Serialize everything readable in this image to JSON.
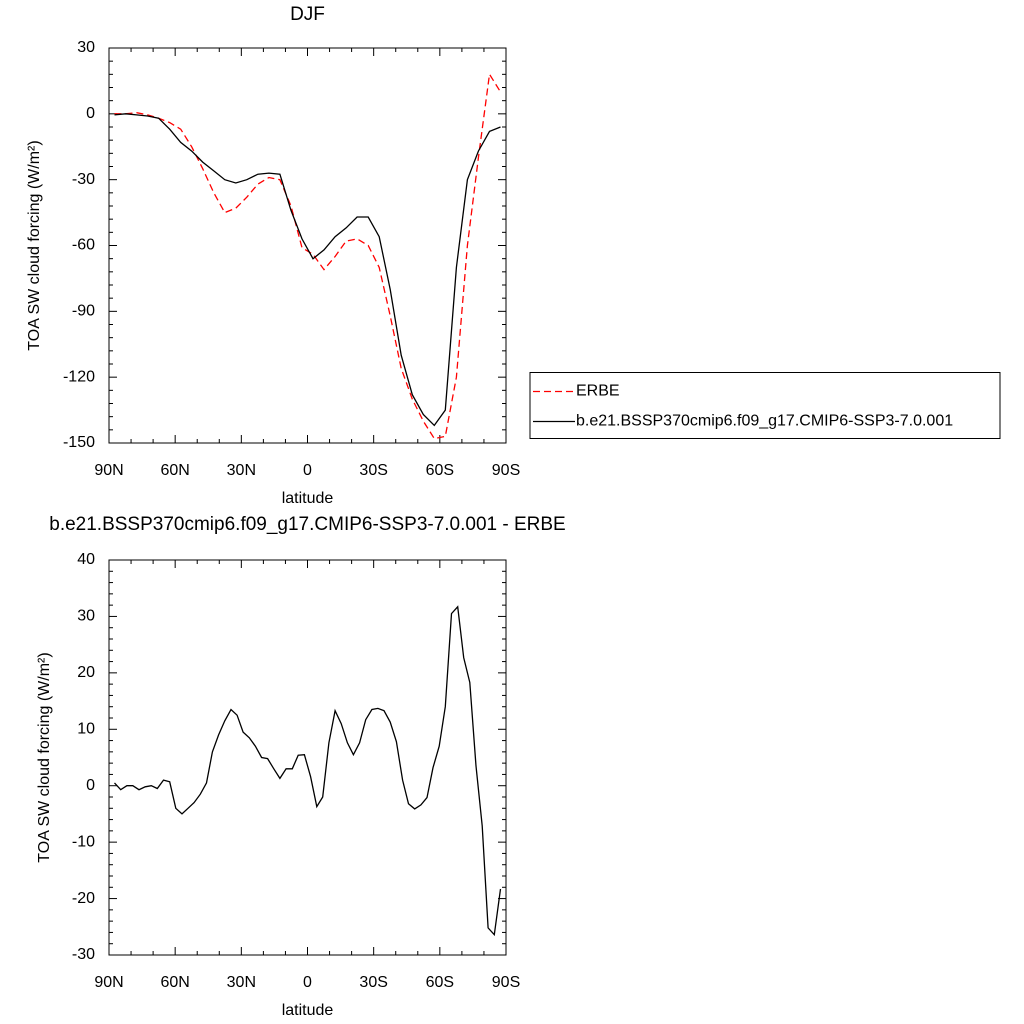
{
  "chart_data": [
    {
      "type": "line",
      "title": "DJF",
      "xlabel": "latitude",
      "ylabel": "TOA SW cloud forcing (W/m²)",
      "x": [
        87.5,
        82.5,
        77.5,
        72.5,
        67.5,
        62.5,
        57.5,
        52.5,
        47.5,
        42.5,
        37.5,
        32.5,
        27.5,
        22.5,
        17.5,
        12.5,
        7.5,
        2.5,
        -2.5,
        -7.5,
        -12.5,
        -17.5,
        -22.5,
        -27.5,
        -32.5,
        -37.5,
        -42.5,
        -47.5,
        -52.5,
        -57.5,
        -62.5,
        -67.5,
        -72.5,
        -77.5,
        -82.5,
        -87.5
      ],
      "series": [
        {
          "name": "ERBE",
          "color": "#ff0000",
          "line_style": "dashed",
          "values": [
            0,
            0,
            0.5,
            -0.5,
            -2,
            -4,
            -7,
            -15,
            -25,
            -36,
            -45,
            -43,
            -38,
            -32,
            -29,
            -30,
            -42,
            -61,
            -64,
            -71,
            -65,
            -58,
            -57,
            -60,
            -70,
            -92,
            -116,
            -130,
            -140,
            -148,
            -147,
            -120,
            -60,
            -20,
            18,
            10
          ]
        },
        {
          "name": "b.e21.BSSP370cmip6.f09_g17.CMIP6-SSP3-7.0.001",
          "color": "#000000",
          "line_style": "solid",
          "values": [
            -0.5,
            0,
            -0.5,
            -1,
            -2,
            -7,
            -13,
            -17,
            -22,
            -26,
            -30,
            -31.5,
            -30,
            -27.5,
            -27,
            -27.5,
            -44,
            -57,
            -66,
            -62,
            -56,
            -52,
            -47,
            -47,
            -56,
            -80,
            -110,
            -128,
            -137,
            -142,
            -135,
            -70,
            -30,
            -17,
            -8,
            -6
          ]
        }
      ],
      "xlim": [
        90,
        -90
      ],
      "ylim": [
        -150,
        30
      ],
      "xticks": [
        {
          "value": 90,
          "label": "90N"
        },
        {
          "value": 60,
          "label": "60N"
        },
        {
          "value": 30,
          "label": "30N"
        },
        0,
        {
          "value": -30,
          "label": "30S"
        },
        {
          "value": -60,
          "label": "60S"
        },
        {
          "value": -90,
          "label": "90S"
        }
      ],
      "yticks": [
        -150,
        -120,
        -90,
        -60,
        -30,
        0,
        30
      ],
      "legend": "right"
    },
    {
      "type": "line",
      "title": "b.e21.BSSP370cmip6.f09_g17.CMIP6-SSP3-7.0.001 - ERBE",
      "xlabel": "latitude",
      "ylabel": "TOA SW cloud forcing (W/m²)",
      "x": [
        87.5,
        84.7,
        81.9,
        79.2,
        76.4,
        73.6,
        70.8,
        68.1,
        65.3,
        62.5,
        59.7,
        56.9,
        54.2,
        51.4,
        48.6,
        45.8,
        43.1,
        40.3,
        37.5,
        34.7,
        31.9,
        29.2,
        26.4,
        23.6,
        20.8,
        18.1,
        15.3,
        12.5,
        9.7,
        6.9,
        4.2,
        1.4,
        -1.4,
        -4.2,
        -6.9,
        -9.7,
        -12.5,
        -15.3,
        -18.1,
        -20.8,
        -23.6,
        -26.4,
        -29.2,
        -31.9,
        -34.7,
        -37.5,
        -40.3,
        -43.1,
        -45.8,
        -48.6,
        -51.4,
        -54.2,
        -56.9,
        -59.7,
        -62.5,
        -65.3,
        -68.1,
        -70.8,
        -73.6,
        -76.4,
        -79.2,
        -81.9,
        -84.7,
        -87.5
      ],
      "series": [
        {
          "color": "#000000",
          "line_style": "solid",
          "values": [
            0.5,
            -0.7,
            0,
            0,
            -0.7,
            -0.2,
            0,
            -0.5,
            1,
            0.7,
            -4,
            -5,
            -4,
            -3,
            -1.5,
            0.5,
            6,
            9,
            11.5,
            13.5,
            12.5,
            9.5,
            8.5,
            7,
            5,
            4.8,
            3,
            1.3,
            3,
            3,
            5.4,
            5.5,
            1.6,
            -3.7,
            -2,
            7.6,
            13.3,
            11,
            7.6,
            5.5,
            7.6,
            11.7,
            13.5,
            13.7,
            13.3,
            11.3,
            7.8,
            1,
            -3.2,
            -4.1,
            -3.4,
            -2.1,
            3.2,
            7,
            14,
            30.5,
            31.7,
            22.7,
            18.3,
            3.5,
            -7.1,
            -25.2,
            -26.4,
            -18.3
          ]
        }
      ],
      "xlim": [
        90,
        -90
      ],
      "ylim": [
        -30,
        40
      ],
      "xticks": [
        {
          "value": 90,
          "label": "90N"
        },
        {
          "value": 60,
          "label": "60N"
        },
        {
          "value": 30,
          "label": "30N"
        },
        0,
        {
          "value": -30,
          "label": "30S"
        },
        {
          "value": -60,
          "label": "60S"
        },
        {
          "value": -90,
          "label": "90S"
        }
      ],
      "yticks": [
        -30,
        -20,
        -10,
        0,
        10,
        20,
        30,
        40
      ]
    }
  ]
}
